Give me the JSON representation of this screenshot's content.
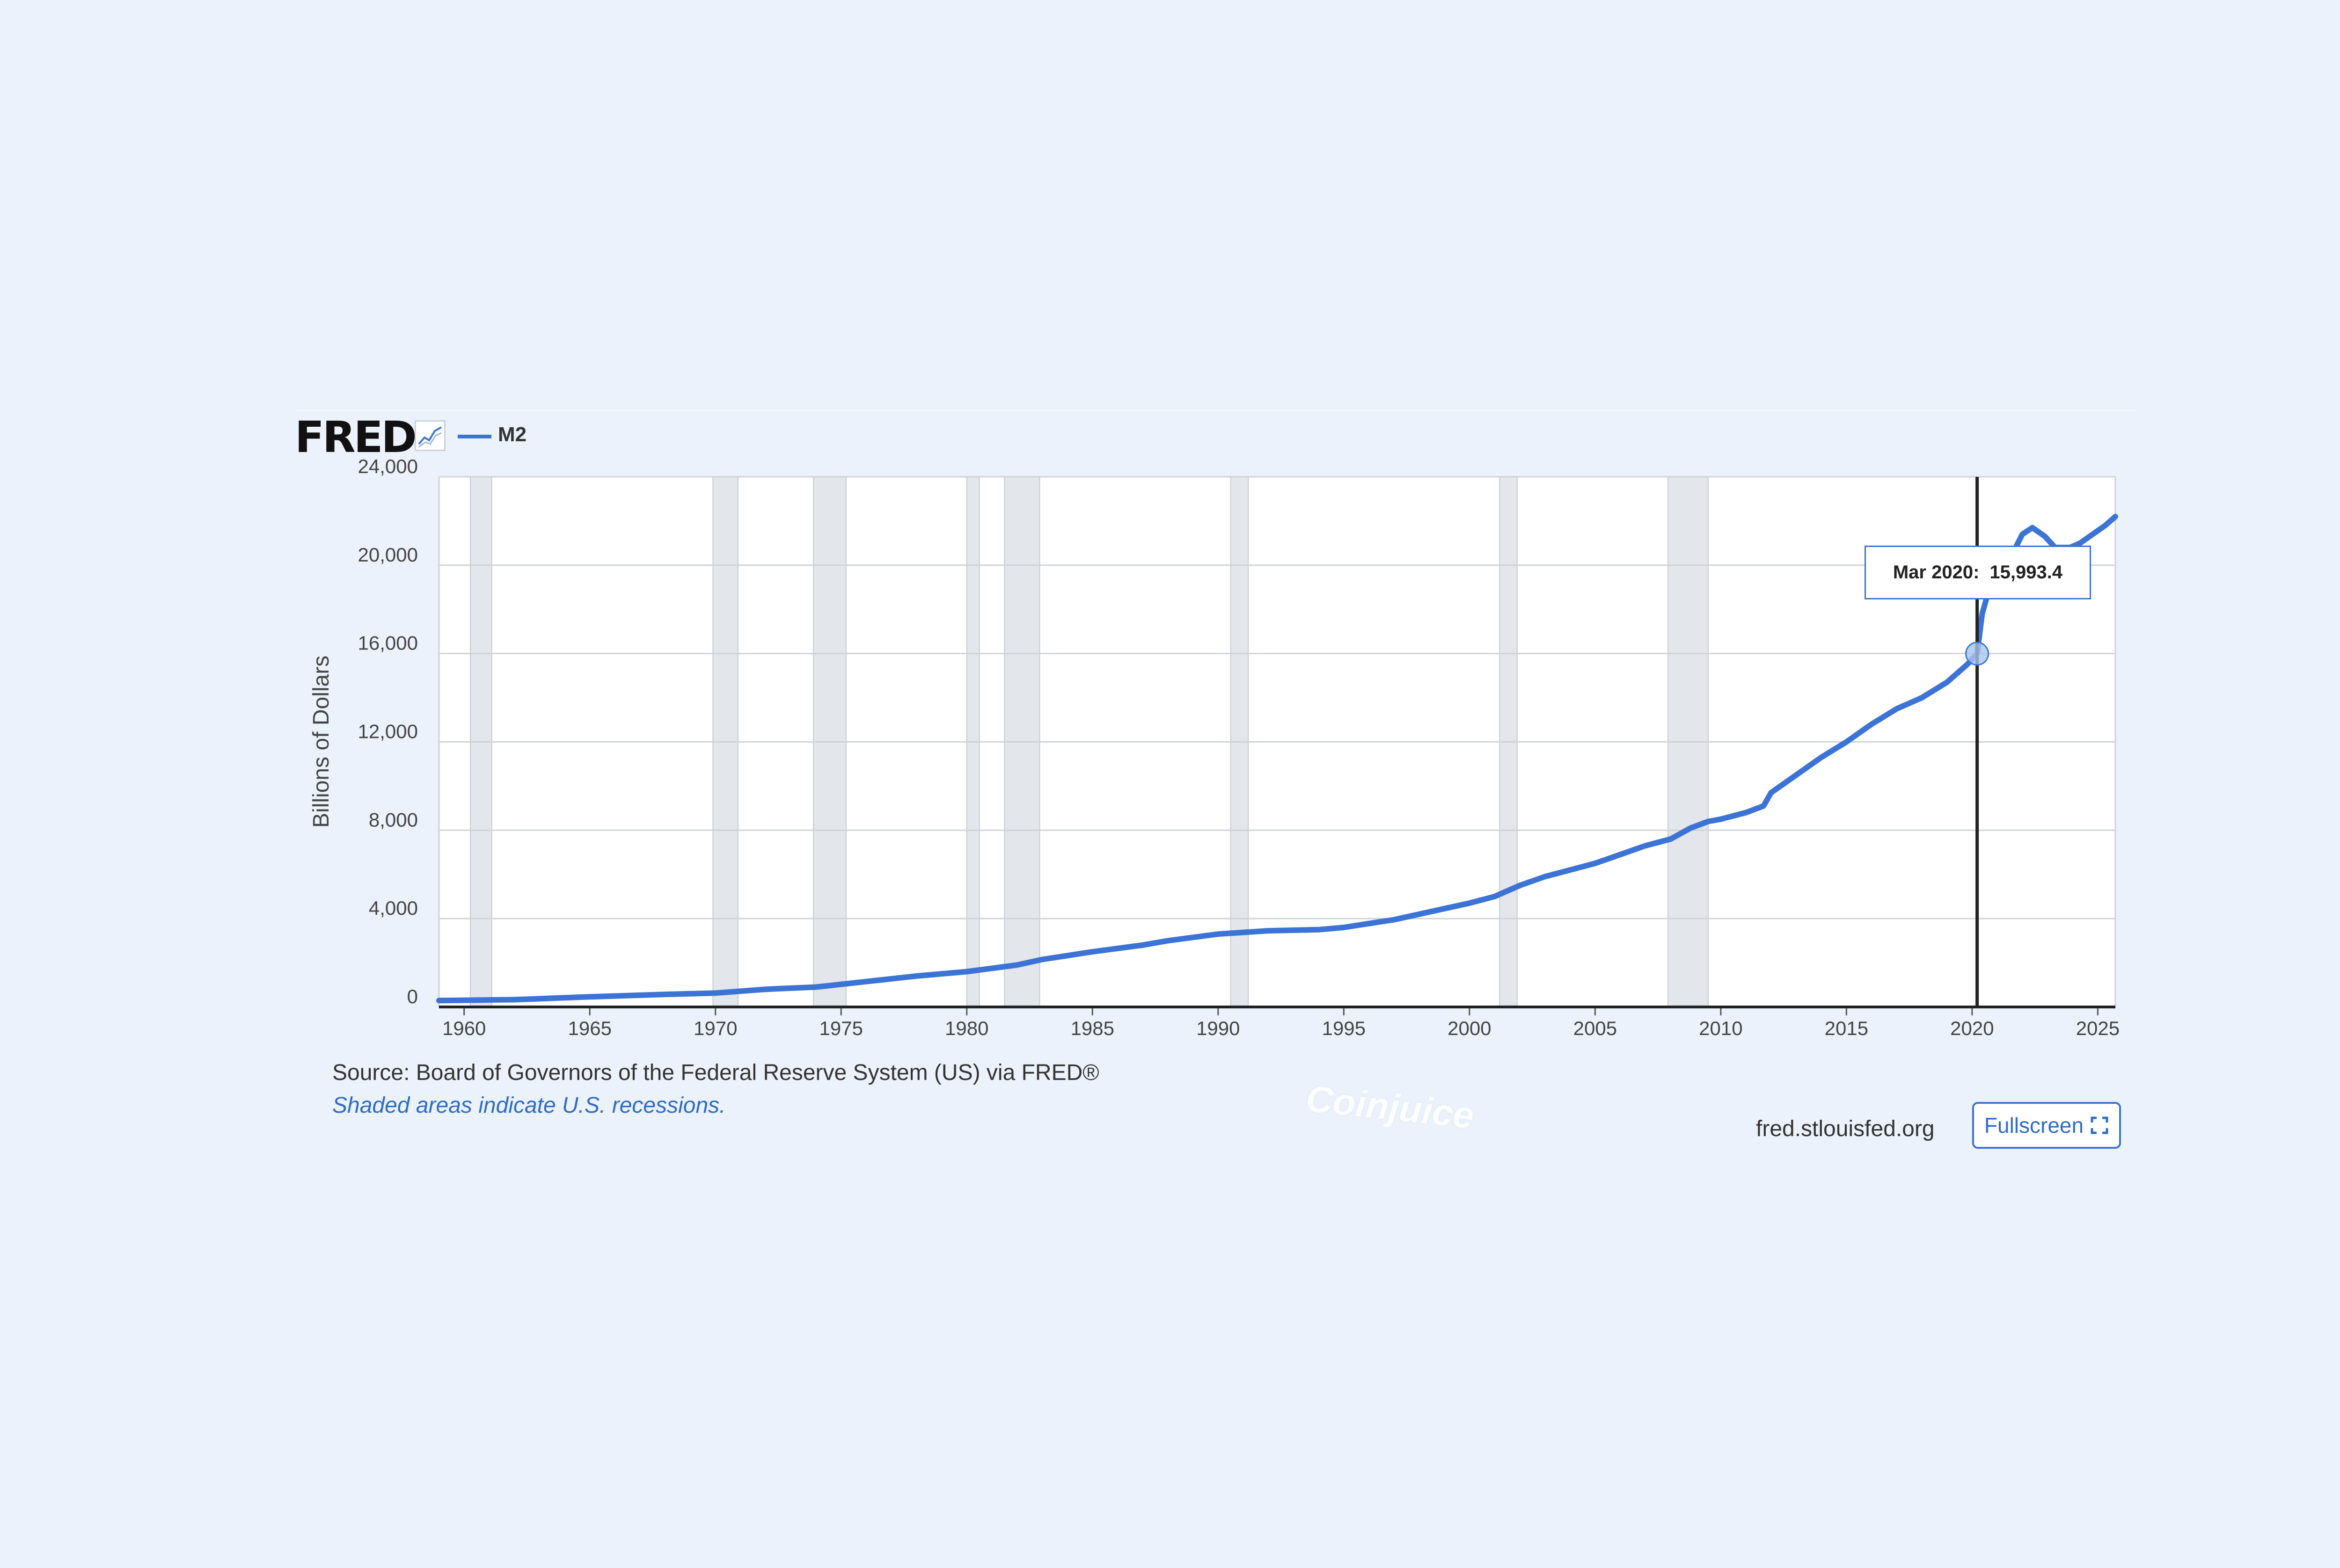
{
  "header": {
    "logo_text": "FRED",
    "graph_icon": "line-chart-icon",
    "legend_label": "M2",
    "series_color": "#3b74d6"
  },
  "chart_data": {
    "type": "line",
    "title": "",
    "xlabel": "",
    "ylabel": "Billions of Dollars",
    "xlim": [
      1959,
      2025.7
    ],
    "ylim": [
      0,
      24000
    ],
    "y_ticks": [
      0,
      4000,
      8000,
      12000,
      16000,
      20000,
      24000
    ],
    "y_tick_labels": [
      "0",
      "4,000",
      "8,000",
      "12,000",
      "16,000",
      "20,000",
      "24,000"
    ],
    "x_ticks": [
      1960,
      1965,
      1970,
      1975,
      1980,
      1985,
      1990,
      1995,
      2000,
      2005,
      2010,
      2015,
      2020,
      2025
    ],
    "x_tick_labels": [
      "1960",
      "1965",
      "1970",
      "1975",
      "1980",
      "1985",
      "1990",
      "1995",
      "2000",
      "2005",
      "2010",
      "2015",
      "2020",
      "2025"
    ],
    "grid": true,
    "legend": "top-left",
    "recessions": [
      [
        1960.25,
        1961.1
      ],
      [
        1969.9,
        1970.9
      ],
      [
        1973.9,
        1975.2
      ],
      [
        1980.0,
        1980.5
      ],
      [
        1981.5,
        1982.9
      ],
      [
        1990.5,
        1991.2
      ],
      [
        2001.2,
        2001.9
      ],
      [
        2007.9,
        2009.5
      ]
    ],
    "series": [
      {
        "name": "M2",
        "color": "#3b74d6",
        "x": [
          1959,
          1962,
          1965,
          1968,
          1970,
          1972,
          1974,
          1976,
          1978,
          1980,
          1982,
          1983,
          1985,
          1987,
          1988,
          1990,
          1992,
          1994,
          1995,
          1997,
          1999,
          2000,
          2001,
          2002,
          2003,
          2004,
          2005,
          2006,
          2007,
          2008,
          2008.8,
          2009.5,
          2010,
          2011,
          2011.7,
          2012,
          2013,
          2014,
          2015,
          2016,
          2017,
          2018,
          2019,
          2019.8,
          2020.2,
          2020.4,
          2020.6,
          2021,
          2021.6,
          2022,
          2022.4,
          2022.9,
          2023.3,
          2023.9,
          2024.3,
          2024.8,
          2025.3,
          2025.7
        ],
        "y": [
          290,
          330,
          460,
          570,
          630,
          800,
          900,
          1150,
          1400,
          1600,
          1900,
          2150,
          2500,
          2800,
          3000,
          3300,
          3450,
          3500,
          3600,
          3950,
          4450,
          4700,
          5000,
          5500,
          5900,
          6200,
          6500,
          6900,
          7300,
          7600,
          8100,
          8400,
          8500,
          8800,
          9100,
          9700,
          10500,
          11300,
          12000,
          12800,
          13500,
          14000,
          14700,
          15500,
          15993.4,
          17800,
          18600,
          19600,
          20500,
          21400,
          21700,
          21300,
          20800,
          20800,
          21000,
          21400,
          21800,
          22200
        ]
      }
    ],
    "hover": {
      "date_label": "Mar 2020:",
      "value_label": "15,993.4",
      "x": 2020.2,
      "y": 15993.4
    }
  },
  "footer": {
    "source": "Source: Board of Governors of the Federal Reserve System (US) via FRED®",
    "note": "Shaded areas indicate U.S. recessions.",
    "site": "fred.stlouisfed.org",
    "fullscreen_label": "Fullscreen",
    "fullscreen_icon": "expand-icon"
  },
  "watermark": "Coinjuice"
}
